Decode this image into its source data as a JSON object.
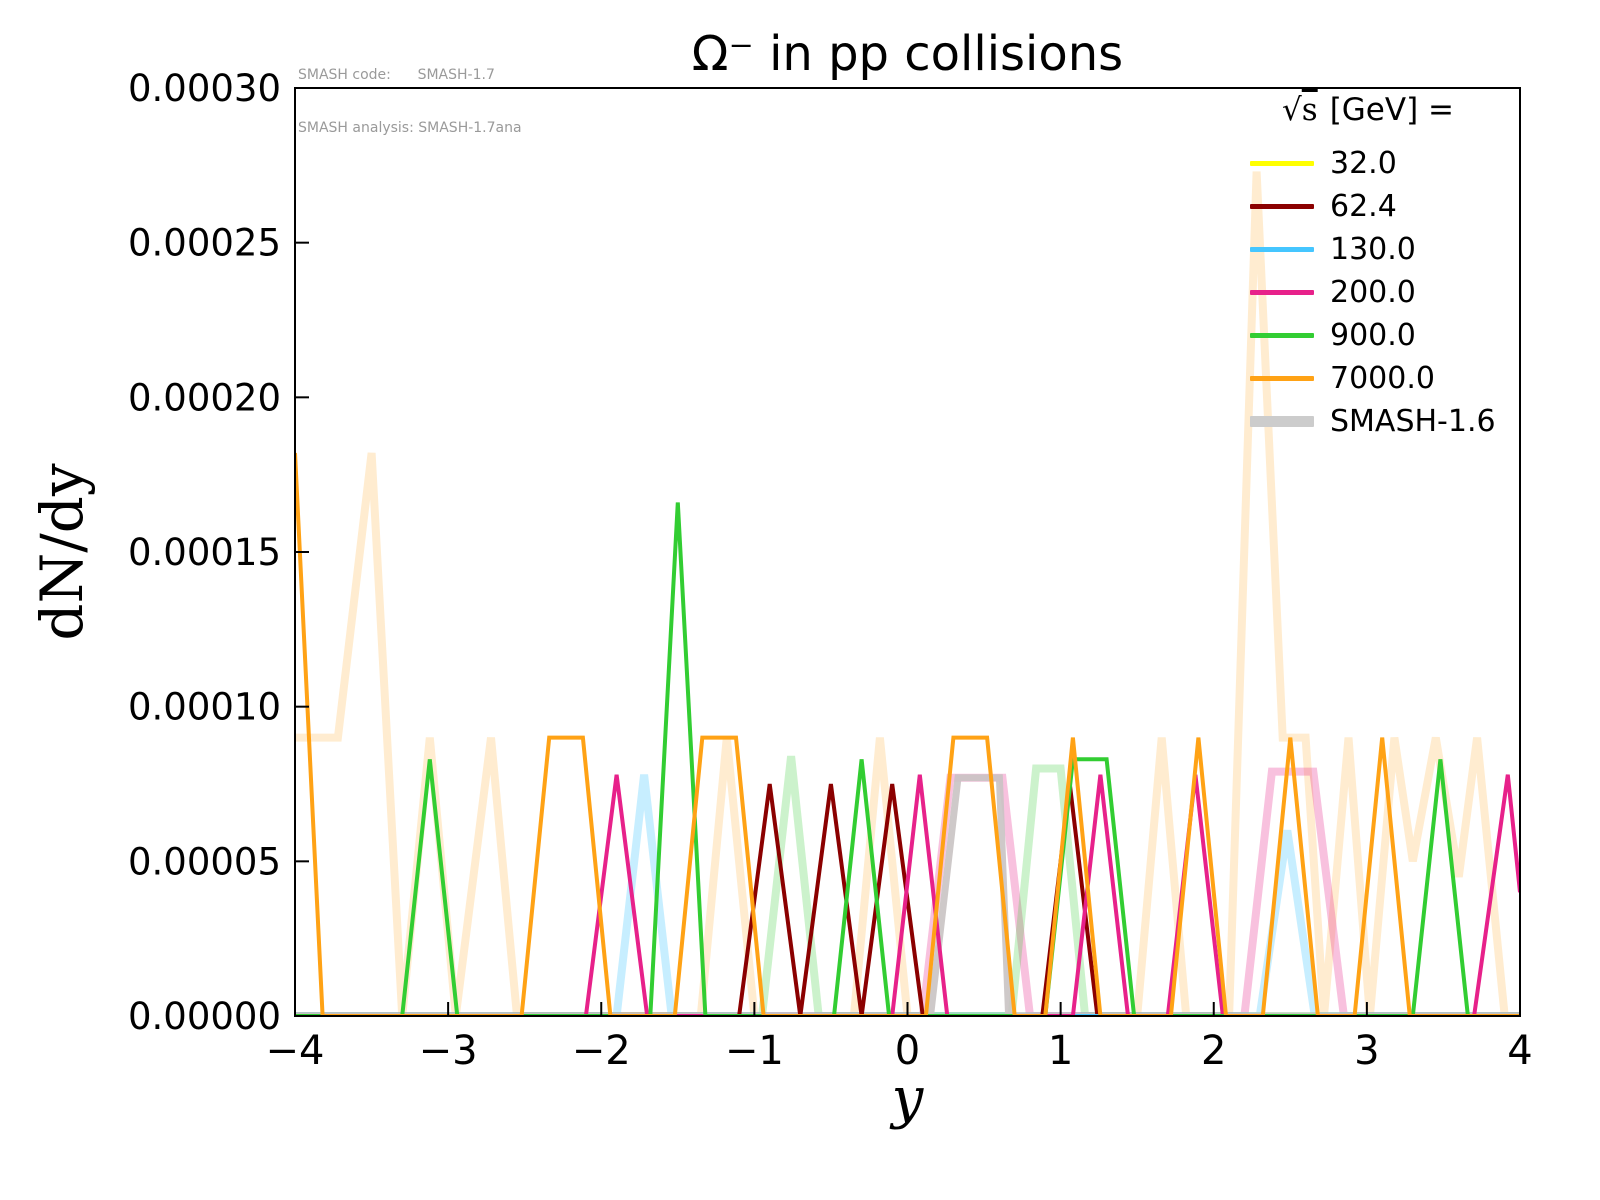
{
  "annotations": {
    "line1": "SMASH code:      SMASH-1.7",
    "line2": "SMASH analysis: SMASH-1.7ana"
  },
  "chart_data": {
    "type": "line",
    "title": "Ω⁻ in pp collisions",
    "xlabel": "y",
    "ylabel": "dN/dy",
    "xlim": [
      -4,
      4
    ],
    "ylim": [
      0,
      0.0003
    ],
    "grid": false,
    "xticks": {
      "values": [
        -4,
        -3,
        -2,
        -1,
        0,
        1,
        2,
        3,
        4
      ],
      "labels": [
        "−4",
        "−3",
        "−2",
        "−1",
        "0",
        "1",
        "2",
        "3",
        "4"
      ]
    },
    "yticks": {
      "values": [
        0,
        5e-05,
        0.0001,
        0.00015,
        0.0002,
        0.00025,
        0.0003
      ],
      "labels": [
        "0.00000",
        "0.00005",
        "0.00010",
        "0.00015",
        "0.00020",
        "0.00025",
        "0.00030"
      ]
    },
    "legend": {
      "position": "upper right",
      "header_radical": "√",
      "header_s": "s",
      "header_rest": "[GeV] =",
      "entries": [
        {
          "label": "32.0",
          "color": "#ffff00",
          "width": 5
        },
        {
          "label": "62.4",
          "color": "#8b0000",
          "width": 5
        },
        {
          "label": "130.0",
          "color": "#45c6ff",
          "width": 5
        },
        {
          "label": "200.0",
          "color": "#e7218a",
          "width": 5
        },
        {
          "label": "900.0",
          "color": "#32cd32",
          "width": 5
        },
        {
          "label": "7000.0",
          "color": "#ffa215",
          "width": 5
        },
        {
          "label": "SMASH-1.6",
          "color": "#cccccc",
          "width": 11
        }
      ]
    },
    "series": [
      {
        "name": "smash16-7000",
        "group": "SMASH-1.6",
        "color": "#ffa215",
        "width": 8,
        "opacity": 0.2,
        "points": [
          [
            -4,
            9e-05
          ],
          [
            -3.72,
            9e-05
          ],
          [
            -3.5,
            0.000182
          ],
          [
            -3.3,
            0
          ],
          [
            -3.12,
            9e-05
          ],
          [
            -2.95,
            0
          ],
          [
            -2.72,
            9e-05
          ],
          [
            -2.55,
            0
          ],
          [
            -1.35,
            0
          ],
          [
            -1.18,
            9e-05
          ],
          [
            -1.0,
            0
          ],
          [
            -0.35,
            0
          ],
          [
            -0.18,
            9e-05
          ],
          [
            0,
            0
          ],
          [
            1.5,
            0
          ],
          [
            1.66,
            9e-05
          ],
          [
            1.82,
            0
          ],
          [
            2.1,
            0
          ],
          [
            2.28,
            0.000273
          ],
          [
            2.45,
            9e-05
          ],
          [
            2.6,
            9e-05
          ],
          [
            2.72,
            0
          ],
          [
            2.88,
            9e-05
          ],
          [
            3.02,
            0
          ],
          [
            3.18,
            9e-05
          ],
          [
            3.3,
            5e-05
          ],
          [
            3.45,
            9e-05
          ],
          [
            3.6,
            4.5e-05
          ],
          [
            3.72,
            9e-05
          ],
          [
            3.9,
            0
          ],
          [
            4,
            0
          ]
        ]
      },
      {
        "name": "smash16-200",
        "group": "SMASH-1.6",
        "color": "#e7218a",
        "width": 8,
        "opacity": 0.28,
        "points": [
          [
            -4,
            0
          ],
          [
            0.1,
            0
          ],
          [
            0.28,
            7.7e-05
          ],
          [
            0.62,
            7.7e-05
          ],
          [
            0.8,
            0
          ],
          [
            2.2,
            0
          ],
          [
            2.38,
            7.9e-05
          ],
          [
            2.65,
            7.9e-05
          ],
          [
            2.85,
            0
          ],
          [
            4,
            0
          ]
        ]
      },
      {
        "name": "smash16-900",
        "group": "SMASH-1.6",
        "color": "#32cd32",
        "width": 8,
        "opacity": 0.25,
        "points": [
          [
            -4,
            0
          ],
          [
            -0.95,
            0
          ],
          [
            -0.76,
            8.4e-05
          ],
          [
            -0.58,
            0
          ],
          [
            0.68,
            0
          ],
          [
            0.84,
            8e-05
          ],
          [
            1.0,
            8e-05
          ],
          [
            1.16,
            0
          ],
          [
            4,
            0
          ]
        ]
      },
      {
        "name": "smash16-130",
        "group": "SMASH-1.6",
        "color": "#45c6ff",
        "width": 8,
        "opacity": 0.3,
        "points": [
          [
            -4,
            0
          ],
          [
            -1.9,
            0
          ],
          [
            -1.72,
            7.8e-05
          ],
          [
            -1.54,
            0
          ],
          [
            2.3,
            0
          ],
          [
            2.48,
            6e-05
          ],
          [
            2.66,
            0
          ],
          [
            4,
            0
          ]
        ]
      },
      {
        "name": "smash16-gray",
        "group": "SMASH-1.6",
        "color": "#c9c3c3",
        "width": 7,
        "opacity": 0.9,
        "points": [
          [
            -4,
            0
          ],
          [
            0.15,
            0
          ],
          [
            0.33,
            7.7e-05
          ],
          [
            0.6,
            7.7e-05
          ],
          [
            0.66,
            0
          ],
          [
            4,
            0
          ]
        ]
      },
      {
        "name": "32.0",
        "group": "solid",
        "color": "#ffff00",
        "width": 4,
        "opacity": 1,
        "points": [
          [
            -4,
            0
          ],
          [
            4,
            0
          ]
        ]
      },
      {
        "name": "62.4",
        "group": "solid",
        "color": "#8b0000",
        "width": 4,
        "opacity": 1,
        "points": [
          [
            -4,
            0
          ],
          [
            -1.1,
            0
          ],
          [
            -0.9,
            7.5e-05
          ],
          [
            -0.7,
            0
          ],
          [
            -0.5,
            7.5e-05
          ],
          [
            -0.3,
            0
          ],
          [
            -0.1,
            7.5e-05
          ],
          [
            0.1,
            0
          ],
          [
            0.88,
            0
          ],
          [
            1.06,
            7.5e-05
          ],
          [
            1.24,
            0
          ],
          [
            4,
            0
          ]
        ]
      },
      {
        "name": "130.0",
        "group": "solid",
        "color": "#45c6ff",
        "width": 4,
        "opacity": 1,
        "points": [
          [
            -4,
            0
          ],
          [
            4,
            0
          ]
        ]
      },
      {
        "name": "200.0",
        "group": "solid",
        "color": "#e7218a",
        "width": 4,
        "opacity": 1,
        "points": [
          [
            -4,
            0
          ],
          [
            -2.1,
            0
          ],
          [
            -1.9,
            7.8e-05
          ],
          [
            -1.7,
            0
          ],
          [
            -0.1,
            0
          ],
          [
            0.08,
            7.8e-05
          ],
          [
            0.26,
            0
          ],
          [
            1.08,
            0
          ],
          [
            1.26,
            7.8e-05
          ],
          [
            1.44,
            0
          ],
          [
            1.7,
            0
          ],
          [
            1.88,
            7.8e-05
          ],
          [
            2.06,
            0
          ],
          [
            3.7,
            0
          ],
          [
            3.92,
            7.8e-05
          ],
          [
            4,
            4e-05
          ]
        ]
      },
      {
        "name": "900.0",
        "group": "solid",
        "color": "#32cd32",
        "width": 4,
        "opacity": 1,
        "points": [
          [
            -4,
            0
          ],
          [
            -3.3,
            0
          ],
          [
            -3.12,
            8.3e-05
          ],
          [
            -2.94,
            0
          ],
          [
            -1.68,
            0
          ],
          [
            -1.5,
            0.000166
          ],
          [
            -1.32,
            0
          ],
          [
            -0.48,
            0
          ],
          [
            -0.3,
            8.3e-05
          ],
          [
            -0.12,
            0
          ],
          [
            0.9,
            0
          ],
          [
            1.08,
            8.3e-05
          ],
          [
            1.3,
            8.3e-05
          ],
          [
            1.48,
            0
          ],
          [
            3.3,
            0
          ],
          [
            3.48,
            8.3e-05
          ],
          [
            3.66,
            0
          ],
          [
            4,
            0
          ]
        ]
      },
      {
        "name": "7000.0",
        "group": "solid",
        "color": "#ffa215",
        "width": 4,
        "opacity": 1,
        "points": [
          [
            -4,
            0.000182
          ],
          [
            -3.82,
            0
          ],
          [
            -2.52,
            0
          ],
          [
            -2.34,
            9e-05
          ],
          [
            -2.12,
            9e-05
          ],
          [
            -1.94,
            0
          ],
          [
            -1.52,
            0
          ],
          [
            -1.34,
            9e-05
          ],
          [
            -1.12,
            9e-05
          ],
          [
            -0.94,
            0
          ],
          [
            0.12,
            0
          ],
          [
            0.3,
            9e-05
          ],
          [
            0.52,
            9e-05
          ],
          [
            0.7,
            0
          ],
          [
            0.9,
            0
          ],
          [
            1.08,
            9e-05
          ],
          [
            1.26,
            0
          ],
          [
            1.72,
            0
          ],
          [
            1.9,
            9e-05
          ],
          [
            2.08,
            0
          ],
          [
            2.32,
            0
          ],
          [
            2.5,
            9e-05
          ],
          [
            2.68,
            0
          ],
          [
            2.92,
            0
          ],
          [
            3.1,
            9e-05
          ],
          [
            3.28,
            0
          ],
          [
            4,
            0
          ]
        ]
      }
    ]
  }
}
